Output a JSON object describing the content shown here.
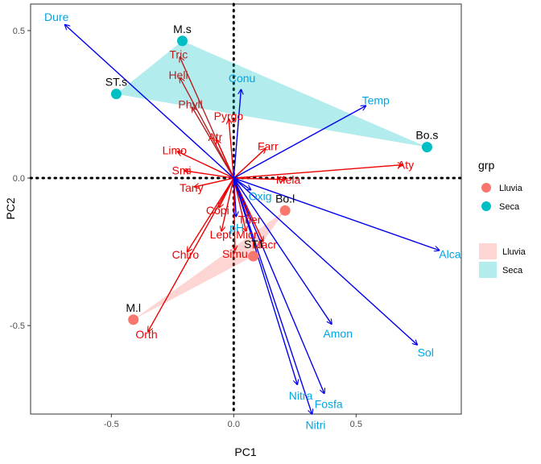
{
  "chart_data": {
    "type": "biplot",
    "xlabel": "PC1",
    "ylabel": "PC2",
    "xlim": [
      -0.83,
      0.93
    ],
    "ylim": [
      -0.8,
      0.59
    ],
    "xticks": [
      -0.5,
      0.0,
      0.5
    ],
    "xtick_labels": [
      "-0.5",
      "0.0",
      "0.5"
    ],
    "yticks": [
      -0.5,
      0.0,
      0.5
    ],
    "ytick_labels": [
      "-0.5",
      "0.0",
      "0.5"
    ],
    "zero_lines": true,
    "legend": {
      "title": "grp",
      "placement": "right",
      "point_entries": [
        {
          "label": "Lluvia",
          "color": "#F8766D"
        },
        {
          "label": "Seca",
          "color": "#00BFC4"
        }
      ],
      "fill_entries": [
        {
          "label": "Lluvia",
          "color": "#F8766D"
        },
        {
          "label": "Seca",
          "color": "#00BFC4"
        }
      ]
    },
    "groups": [
      {
        "name": "Lluvia",
        "color": "#F8766D",
        "hull": [
          [
            -0.41,
            -0.48
          ],
          [
            0.08,
            -0.265
          ],
          [
            0.21,
            -0.11
          ]
        ]
      },
      {
        "name": "Seca",
        "color": "#00BFC4",
        "hull": [
          [
            -0.48,
            0.285
          ],
          [
            -0.21,
            0.465
          ],
          [
            0.79,
            0.105
          ]
        ]
      }
    ],
    "sites": [
      {
        "name": "M.l",
        "group": "Lluvia",
        "x": -0.41,
        "y": -0.48
      },
      {
        "name": "Bo.l",
        "group": "Lluvia",
        "x": 0.21,
        "y": -0.11
      },
      {
        "name": "ST.l",
        "group": "Lluvia",
        "x": 0.08,
        "y": -0.265
      },
      {
        "name": "M.s",
        "group": "Seca",
        "x": -0.21,
        "y": 0.465
      },
      {
        "name": "ST.s",
        "group": "Seca",
        "x": -0.48,
        "y": 0.285
      },
      {
        "name": "Bo.s",
        "group": "Seca",
        "x": 0.79,
        "y": 0.105
      }
    ],
    "env_color": "#0000EE",
    "env_label_color": "#00A5E3",
    "env_vectors": [
      {
        "name": "Dure",
        "x": -0.69,
        "y": 0.52
      },
      {
        "name": "Temp",
        "x": 0.54,
        "y": 0.245
      },
      {
        "name": "Conu",
        "x": 0.03,
        "y": 0.3
      },
      {
        "name": "Oxig",
        "x": 0.07,
        "y": -0.04
      },
      {
        "name": "Alca",
        "x": 0.84,
        "y": -0.245
      },
      {
        "name": "Amon",
        "x": 0.4,
        "y": -0.495
      },
      {
        "name": "Sol",
        "x": 0.75,
        "y": -0.565
      },
      {
        "name": "Nitra",
        "x": 0.26,
        "y": -0.7
      },
      {
        "name": "Fosfa",
        "x": 0.37,
        "y": -0.73
      },
      {
        "name": "Nitri",
        "x": 0.32,
        "y": -0.8
      },
      {
        "name": "pH",
        "x": 0.01,
        "y": -0.13
      }
    ],
    "species_vectors": [
      {
        "name": "Tric",
        "x": -0.22,
        "y": 0.41,
        "color": "#B22222"
      },
      {
        "name": "Heli",
        "x": -0.22,
        "y": 0.34,
        "color": "#B22222"
      },
      {
        "name": "Phyll",
        "x": -0.17,
        "y": 0.24,
        "color": "#B22222"
      },
      {
        "name": "Pyrgo",
        "x": -0.02,
        "y": 0.2,
        "color": "#EE0000"
      },
      {
        "name": "Atr",
        "x": -0.07,
        "y": 0.13,
        "color": "#EE0000"
      },
      {
        "name": "Farr",
        "x": 0.13,
        "y": 0.1,
        "color": "#EE0000"
      },
      {
        "name": "Limo",
        "x": -0.23,
        "y": 0.09,
        "color": "#EE0000"
      },
      {
        "name": "Smi",
        "x": -0.2,
        "y": 0.025,
        "color": "#EE0000"
      },
      {
        "name": "Mela",
        "x": 0.21,
        "y": -0.005,
        "color": "#EE0000"
      },
      {
        "name": "Aty",
        "x": 0.69,
        "y": 0.045,
        "color": "#EE0000"
      },
      {
        "name": "Tany",
        "x": -0.16,
        "y": -0.03,
        "color": "#EE0000"
      },
      {
        "name": "Copi",
        "x": -0.06,
        "y": -0.1,
        "color": "#EE0000"
      },
      {
        "name": "Ther",
        "x": 0.06,
        "y": -0.13,
        "color": "#EE0000"
      },
      {
        "name": "Micr",
        "x": 0.05,
        "y": -0.18,
        "color": "#EE0000"
      },
      {
        "name": "Lept",
        "x": -0.05,
        "y": -0.18,
        "color": "#EE0000"
      },
      {
        "name": "Macr",
        "x": 0.12,
        "y": -0.215,
        "color": "#EE0000"
      },
      {
        "name": "Simu",
        "x": 0.005,
        "y": -0.245,
        "color": "#EE0000"
      },
      {
        "name": "Chiro",
        "x": -0.19,
        "y": -0.25,
        "color": "#EE0000"
      },
      {
        "name": "Orth",
        "x": -0.35,
        "y": -0.52,
        "color": "#EE0000"
      }
    ]
  }
}
